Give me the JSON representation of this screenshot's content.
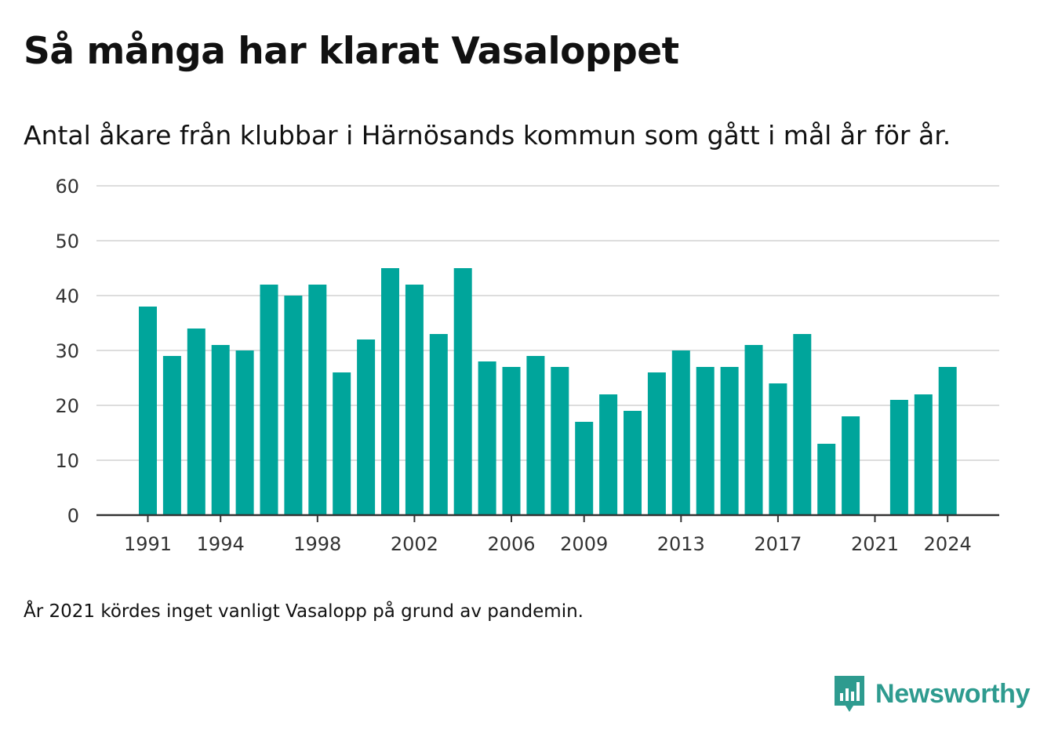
{
  "header": {
    "title": "Så många har klarat Vasaloppet",
    "subtitle": "Antal åkare från klubbar i Härnösands kommun som gått i mål år för år."
  },
  "footer": {
    "note": "År 2021 kördes inget vanligt Vasalopp på grund av pandemin.",
    "brand": "Newsworthy",
    "brand_color": "#2e9b8f",
    "logo_icon": "newsworthy-logo-icon"
  },
  "chart_data": {
    "type": "bar",
    "bar_color": "#00a59b",
    "categories": [
      1991,
      1992,
      1993,
      1994,
      1995,
      1996,
      1997,
      1998,
      1999,
      2000,
      2001,
      2002,
      2003,
      2004,
      2005,
      2006,
      2007,
      2008,
      2009,
      2010,
      2011,
      2012,
      2013,
      2014,
      2015,
      2016,
      2017,
      2018,
      2019,
      2020,
      2021,
      2022,
      2023,
      2024
    ],
    "values": [
      38,
      29,
      34,
      31,
      30,
      42,
      40,
      42,
      26,
      32,
      45,
      42,
      33,
      45,
      28,
      27,
      29,
      27,
      17,
      22,
      19,
      26,
      30,
      27,
      27,
      31,
      24,
      33,
      13,
      18,
      null,
      21,
      22,
      27
    ],
    "x_tick_labels": [
      "1991",
      "1994",
      "1998",
      "2002",
      "2006",
      "2009",
      "2013",
      "2017",
      "2021",
      "2024"
    ],
    "y_ticks": [
      0,
      10,
      20,
      30,
      40,
      50,
      60
    ],
    "ylim": [
      0,
      60
    ],
    "grid": true,
    "legend": "none"
  }
}
